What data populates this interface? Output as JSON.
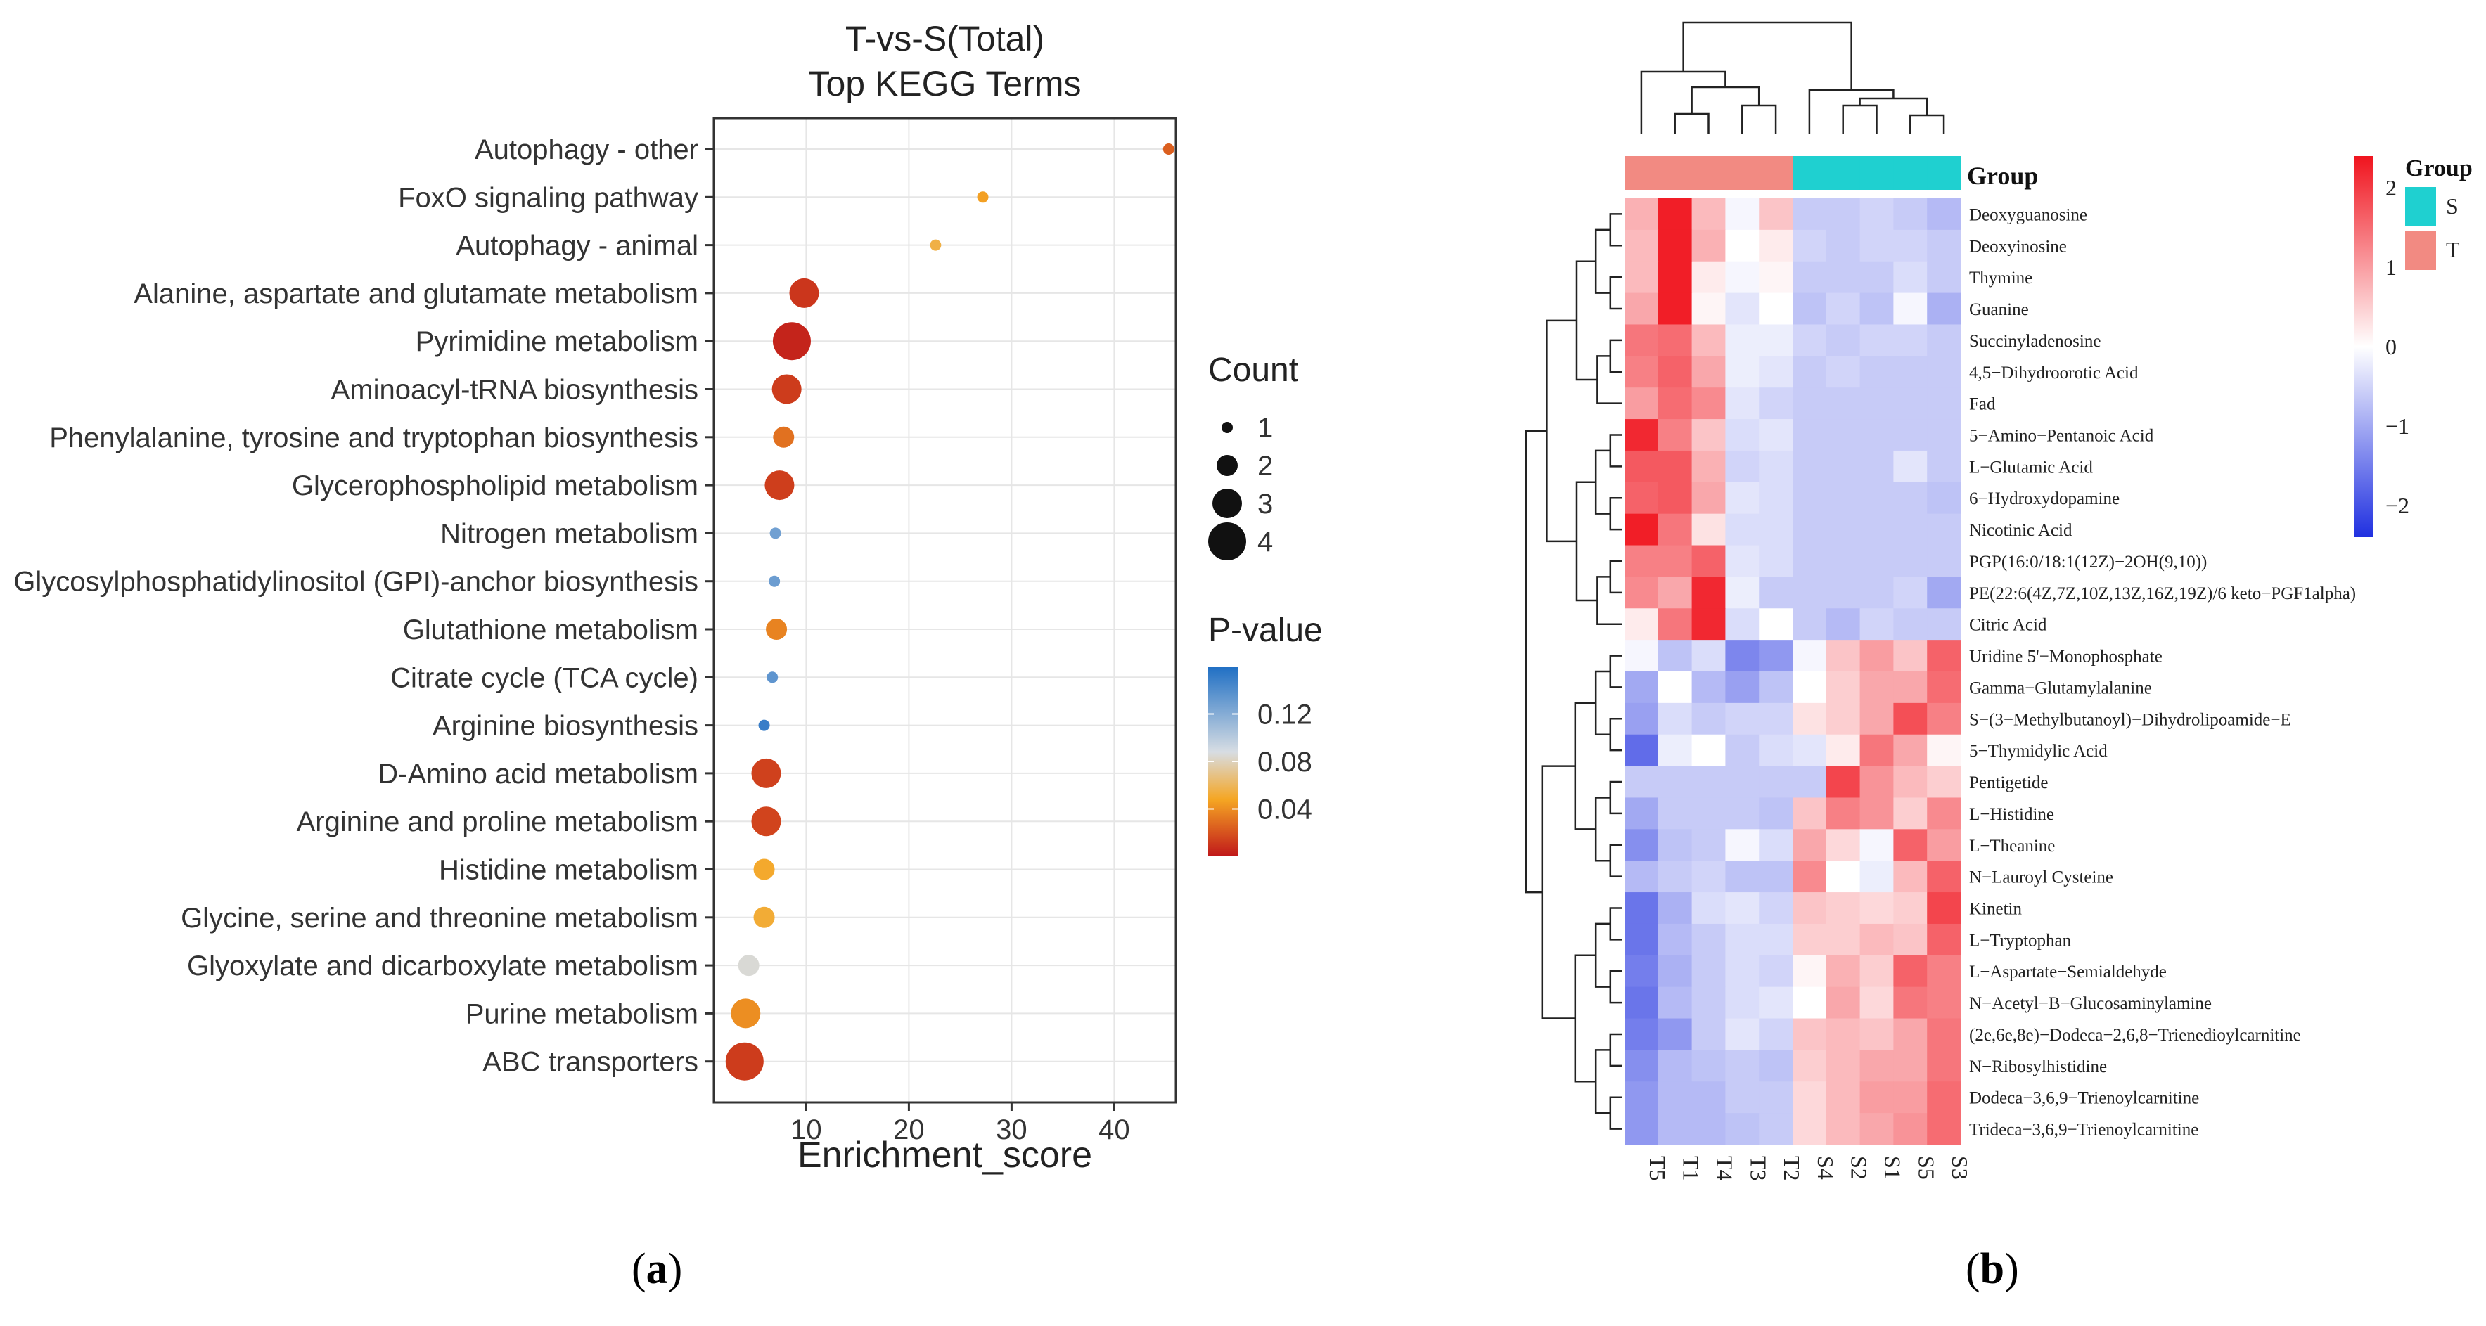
{
  "panel_a": {
    "label_open": "(",
    "label_letter": "a",
    "label_close": ")"
  },
  "panel_b": {
    "label_open": "(",
    "label_letter": "b",
    "label_close": ")"
  },
  "chart_data": [
    {
      "type": "scatter",
      "title": "T-vs-S(Total)",
      "subtitle": "Top KEGG Terms",
      "xlabel": "Enrichment_score",
      "ylabel": "",
      "xlim": [
        1,
        46
      ],
      "xticks": [
        10,
        20,
        30,
        40
      ],
      "grid": true,
      "points": [
        {
          "term": "Autophagy - other",
          "x": 45.3,
          "count": 1,
          "pvalue": 0.024
        },
        {
          "term": "FoxO signaling pathway",
          "x": 27.2,
          "count": 1,
          "pvalue": 0.046
        },
        {
          "term": "Autophagy - animal",
          "x": 22.6,
          "count": 1,
          "pvalue": 0.055
        },
        {
          "term": "Alanine, aspartate and glutamate metabolism",
          "x": 9.8,
          "count": 3,
          "pvalue": 0.01
        },
        {
          "term": "Pyrimidine metabolism",
          "x": 8.6,
          "count": 4,
          "pvalue": 0.004
        },
        {
          "term": "Aminoacyl-tRNA biosynthesis",
          "x": 8.1,
          "count": 3,
          "pvalue": 0.012
        },
        {
          "term": "Phenylalanine, tyrosine and tryptophan biosynthesis",
          "x": 7.8,
          "count": 2,
          "pvalue": 0.03
        },
        {
          "term": "Glycerophospholipid metabolism",
          "x": 7.4,
          "count": 3,
          "pvalue": 0.013
        },
        {
          "term": "Nitrogen metabolism",
          "x": 7.0,
          "count": 1,
          "pvalue": 0.128
        },
        {
          "term": "Glycosylphosphatidylinositol (GPI)-anchor biosynthesis",
          "x": 6.9,
          "count": 1,
          "pvalue": 0.13
        },
        {
          "term": "Glutathione metabolism",
          "x": 7.1,
          "count": 2,
          "pvalue": 0.036
        },
        {
          "term": "Citrate cycle (TCA cycle)",
          "x": 6.7,
          "count": 1,
          "pvalue": 0.135
        },
        {
          "term": "Arginine biosynthesis",
          "x": 5.9,
          "count": 1,
          "pvalue": 0.15
        },
        {
          "term": "D-Amino acid metabolism",
          "x": 6.1,
          "count": 3,
          "pvalue": 0.014
        },
        {
          "term": "Arginine and proline metabolism",
          "x": 6.1,
          "count": 3,
          "pvalue": 0.015
        },
        {
          "term": "Histidine metabolism",
          "x": 5.9,
          "count": 2,
          "pvalue": 0.05
        },
        {
          "term": "Glycine, serine and threonine metabolism",
          "x": 5.9,
          "count": 2,
          "pvalue": 0.052
        },
        {
          "term": "Glyoxylate and dicarboxylate metabolism",
          "x": 4.4,
          "count": 2,
          "pvalue": 0.085
        },
        {
          "term": "Purine metabolism",
          "x": 4.1,
          "count": 3,
          "pvalue": 0.04
        },
        {
          "term": "ABC transporters",
          "x": 4.0,
          "count": 4,
          "pvalue": 0.012
        }
      ],
      "legend_count": {
        "title": "Count",
        "values": [
          1,
          2,
          3,
          4
        ]
      },
      "legend_pvalue": {
        "title": "P-value",
        "ticks": [
          0.12,
          0.08,
          0.04
        ],
        "labels": [
          "0.12",
          "0.08",
          "0.04"
        ],
        "range": [
          0.0,
          0.16
        ]
      },
      "colors": {
        "low": "#c0181a",
        "mid1": "#f5a623",
        "mid2": "#d7dde3",
        "high": "#1f6fc4",
        "panel_bg": "#ffffff",
        "grid": "#e6e6e6"
      }
    },
    {
      "type": "heatmap",
      "columns": [
        "T5",
        "T1",
        "T4",
        "T3",
        "T2",
        "S4",
        "S2",
        "S1",
        "S5",
        "S3"
      ],
      "column_groups": [
        "T",
        "T",
        "T",
        "T",
        "T",
        "S",
        "S",
        "S",
        "S",
        "S"
      ],
      "group_title": "Group",
      "group_legend": [
        {
          "label": "S",
          "color": "#1fd0d0"
        },
        {
          "label": "T",
          "color": "#f28a82"
        }
      ],
      "scale_ticks": [
        2,
        1,
        0,
        -1,
        -2
      ],
      "scale_labels": [
        "2",
        "1",
        "0",
        "−1",
        "−2"
      ],
      "scale_range": [
        -2.4,
        2.4
      ],
      "colors": {
        "low": "#2030e0",
        "mid": "#ffffff",
        "high": "#f0141e"
      },
      "rows": [
        {
          "name": "Deoxyguanosine",
          "values": [
            0.8,
            2.3,
            0.7,
            -0.1,
            0.6,
            -0.6,
            -0.6,
            -0.5,
            -0.6,
            -0.8
          ]
        },
        {
          "name": "Deoxyinosine",
          "values": [
            0.7,
            2.3,
            0.8,
            0.0,
            0.2,
            -0.5,
            -0.6,
            -0.5,
            -0.5,
            -0.6
          ]
        },
        {
          "name": "Thymine",
          "values": [
            0.7,
            2.3,
            0.2,
            -0.1,
            0.1,
            -0.6,
            -0.6,
            -0.6,
            -0.4,
            -0.6
          ]
        },
        {
          "name": "Guanine",
          "values": [
            0.9,
            2.3,
            0.1,
            -0.3,
            0.0,
            -0.7,
            -0.5,
            -0.7,
            -0.1,
            -0.9
          ]
        },
        {
          "name": "Succinyladenosine",
          "values": [
            1.4,
            1.5,
            0.7,
            -0.2,
            -0.2,
            -0.5,
            -0.6,
            -0.5,
            -0.5,
            -0.6
          ]
        },
        {
          "name": "4,5−Dihydroorotic Acid",
          "values": [
            1.3,
            1.6,
            0.9,
            -0.2,
            -0.3,
            -0.6,
            -0.5,
            -0.6,
            -0.6,
            -0.6
          ]
        },
        {
          "name": "Fad",
          "values": [
            1.0,
            1.5,
            1.2,
            -0.3,
            -0.5,
            -0.6,
            -0.6,
            -0.6,
            -0.6,
            -0.6
          ]
        },
        {
          "name": "5−Amino−Pentanoic Acid",
          "values": [
            2.2,
            1.3,
            0.6,
            -0.4,
            -0.3,
            -0.6,
            -0.6,
            -0.6,
            -0.6,
            -0.6
          ]
        },
        {
          "name": "L−Glutamic Acid",
          "values": [
            1.7,
            1.7,
            0.8,
            -0.5,
            -0.4,
            -0.6,
            -0.6,
            -0.6,
            -0.3,
            -0.6
          ]
        },
        {
          "name": "6−Hydroxydopamine",
          "values": [
            1.6,
            1.7,
            0.9,
            -0.3,
            -0.4,
            -0.6,
            -0.6,
            -0.6,
            -0.6,
            -0.7
          ]
        },
        {
          "name": "Nicotinic Acid",
          "values": [
            2.3,
            1.4,
            0.3,
            -0.4,
            -0.4,
            -0.6,
            -0.6,
            -0.6,
            -0.6,
            -0.6
          ]
        },
        {
          "name": "PGP(16:0/18:1(12Z)−2OH(9,10))",
          "values": [
            1.3,
            1.3,
            1.6,
            -0.3,
            -0.4,
            -0.6,
            -0.6,
            -0.6,
            -0.6,
            -0.6
          ]
        },
        {
          "name": "PE(22:6(4Z,7Z,10Z,13Z,16Z,19Z)/6 keto−PGF1alpha)",
          "values": [
            1.2,
            0.9,
            2.2,
            -0.2,
            -0.6,
            -0.6,
            -0.6,
            -0.6,
            -0.5,
            -1.0
          ]
        },
        {
          "name": "Citric Acid",
          "values": [
            0.2,
            1.4,
            2.2,
            -0.4,
            0.0,
            -0.6,
            -0.8,
            -0.5,
            -0.6,
            -0.6
          ]
        },
        {
          "name": "Uridine 5'−Monophosphate",
          "values": [
            -0.1,
            -0.7,
            -0.4,
            -1.4,
            -1.2,
            -0.1,
            0.6,
            1.0,
            0.6,
            1.6
          ]
        },
        {
          "name": "Gamma−Glutamylalanine",
          "values": [
            -1.0,
            0.0,
            -0.8,
            -1.1,
            -0.7,
            0.0,
            0.5,
            0.9,
            0.9,
            1.5
          ]
        },
        {
          "name": "S−(3−Methylbutanoyl)−Dihydrolipoamide−E",
          "values": [
            -1.1,
            -0.4,
            -0.6,
            -0.5,
            -0.5,
            0.3,
            0.5,
            0.9,
            1.8,
            1.3
          ]
        },
        {
          "name": "5−Thymidylic Acid",
          "values": [
            -1.7,
            -0.2,
            0.0,
            -0.6,
            -0.4,
            -0.3,
            0.2,
            1.4,
            0.9,
            0.1
          ]
        },
        {
          "name": "Pentigetide",
          "values": [
            -0.6,
            -0.6,
            -0.6,
            -0.6,
            -0.6,
            -0.6,
            1.9,
            1.1,
            0.7,
            0.5
          ]
        },
        {
          "name": "L−Histidine",
          "values": [
            -1.0,
            -0.6,
            -0.6,
            -0.6,
            -0.7,
            0.6,
            1.3,
            1.1,
            0.5,
            1.2
          ]
        },
        {
          "name": "L−Theanine",
          "values": [
            -1.3,
            -0.7,
            -0.6,
            -0.1,
            -0.4,
            0.9,
            0.4,
            -0.1,
            1.6,
            1.0
          ]
        },
        {
          "name": "N−Lauroyl Cysteine",
          "values": [
            -0.8,
            -0.6,
            -0.5,
            -0.7,
            -0.7,
            1.2,
            0.0,
            -0.2,
            0.7,
            1.6
          ]
        },
        {
          "name": "Kinetin",
          "values": [
            -1.6,
            -0.9,
            -0.4,
            -0.3,
            -0.5,
            0.6,
            0.5,
            0.4,
            0.5,
            1.9
          ]
        },
        {
          "name": "L−Tryptophan",
          "values": [
            -1.6,
            -0.8,
            -0.6,
            -0.4,
            -0.4,
            0.5,
            0.5,
            0.7,
            0.6,
            1.6
          ]
        },
        {
          "name": "L−Aspartate−Semialdehyde",
          "values": [
            -1.5,
            -0.9,
            -0.6,
            -0.4,
            -0.5,
            0.1,
            0.8,
            0.5,
            1.6,
            1.3
          ]
        },
        {
          "name": "N−Acetyl−B−Glucosaminylamine",
          "values": [
            -1.6,
            -0.8,
            -0.6,
            -0.4,
            -0.3,
            0.0,
            0.9,
            0.4,
            1.4,
            1.3
          ]
        },
        {
          "name": "(2e,6e,8e)−Dodeca−2,6,8−Trienedioylcarnitine",
          "values": [
            -1.5,
            -1.2,
            -0.6,
            -0.3,
            -0.5,
            0.6,
            0.7,
            0.6,
            0.9,
            1.4
          ]
        },
        {
          "name": "N−Ribosylhistidine",
          "values": [
            -1.3,
            -0.8,
            -0.7,
            -0.6,
            -0.7,
            0.5,
            0.7,
            0.9,
            0.9,
            1.4
          ]
        },
        {
          "name": "Dodeca−3,6,9−Trienoylcarnitine",
          "values": [
            -1.2,
            -0.8,
            -0.8,
            -0.6,
            -0.6,
            0.4,
            0.7,
            1.0,
            1.0,
            1.5
          ]
        },
        {
          "name": "Trideca−3,6,9−Trienoylcarnitine",
          "values": [
            -1.2,
            -0.8,
            -0.8,
            -0.7,
            -0.6,
            0.4,
            0.7,
            0.9,
            1.1,
            1.5
          ]
        }
      ]
    }
  ]
}
